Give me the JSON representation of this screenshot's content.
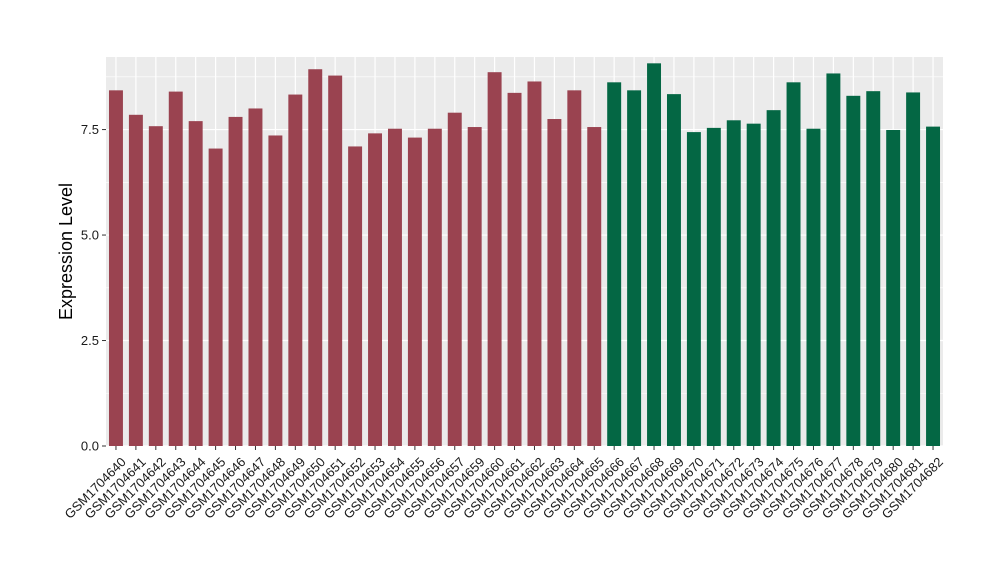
{
  "chart_data": {
    "type": "bar",
    "title": "",
    "xlabel": "",
    "ylabel": "Expression Level",
    "ylim": [
      0,
      9.22
    ],
    "yticks": [
      0.0,
      2.5,
      5.0,
      7.5
    ],
    "ytick_labels": [
      "0.0",
      "2.5",
      "5.0",
      "7.5"
    ],
    "grid": true,
    "legend": "none",
    "panel_background": "#ebebeb",
    "grid_color": "#ffffff",
    "colors": {
      "group1": "#9a4350",
      "group2": "#046744"
    },
    "categories": [
      "GSM1704640",
      "GSM1704641",
      "GSM1704642",
      "GSM1704643",
      "GSM1704644",
      "GSM1704645",
      "GSM1704646",
      "GSM1704647",
      "GSM1704648",
      "GSM1704649",
      "GSM1704650",
      "GSM1704651",
      "GSM1704652",
      "GSM1704653",
      "GSM1704654",
      "GSM1704655",
      "GSM1704656",
      "GSM1704657",
      "GSM1704659",
      "GSM1704660",
      "GSM1704661",
      "GSM1704662",
      "GSM1704663",
      "GSM1704664",
      "GSM1704665",
      "GSM1704666",
      "GSM1704667",
      "GSM1704668",
      "GSM1704669",
      "GSM1704670",
      "GSM1704671",
      "GSM1704672",
      "GSM1704673",
      "GSM1704674",
      "GSM1704675",
      "GSM1704676",
      "GSM1704677",
      "GSM1704678",
      "GSM1704679",
      "GSM1704680",
      "GSM1704681",
      "GSM1704682"
    ],
    "values": [
      8.43,
      7.85,
      7.58,
      8.4,
      7.7,
      7.05,
      7.8,
      8.0,
      7.36,
      8.33,
      8.93,
      8.78,
      7.1,
      7.41,
      7.52,
      7.31,
      7.52,
      7.9,
      7.56,
      8.86,
      8.37,
      8.64,
      7.75,
      8.43,
      7.56,
      8.62,
      8.43,
      9.07,
      8.34,
      7.44,
      7.54,
      7.72,
      7.64,
      7.96,
      8.62,
      7.52,
      8.83,
      8.3,
      8.41,
      7.49,
      8.38,
      7.57
    ],
    "groups": [
      "group1",
      "group1",
      "group1",
      "group1",
      "group1",
      "group1",
      "group1",
      "group1",
      "group1",
      "group1",
      "group1",
      "group1",
      "group1",
      "group1",
      "group1",
      "group1",
      "group1",
      "group1",
      "group1",
      "group1",
      "group1",
      "group1",
      "group1",
      "group1",
      "group1",
      "group2",
      "group2",
      "group2",
      "group2",
      "group2",
      "group2",
      "group2",
      "group2",
      "group2",
      "group2",
      "group2",
      "group2",
      "group2",
      "group2",
      "group2",
      "group2",
      "group2"
    ]
  }
}
